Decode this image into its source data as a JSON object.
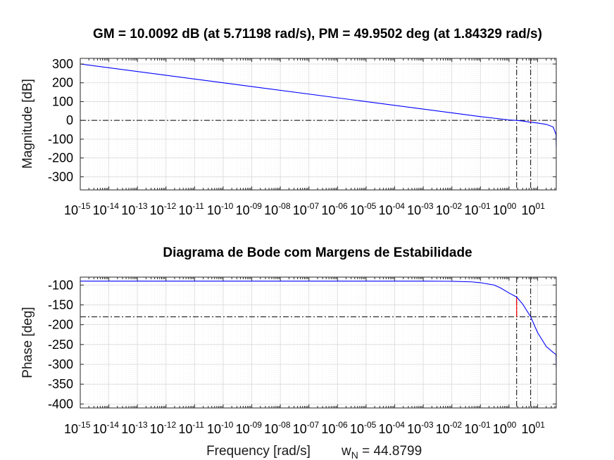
{
  "chart_data": [
    {
      "type": "line",
      "title": "GM = 10.0092 dB (at 5.71198 rad/s),   PM = 49.9502 deg (at 1.84329 rad/s)",
      "ylabel": "Magnitude [dB]",
      "xscale": "log",
      "xlim": [
        1e-15,
        44.8799
      ],
      "ylim": [
        -370,
        330
      ],
      "yticks": [
        300,
        200,
        100,
        0,
        -100,
        -200,
        -300
      ],
      "xtick_exponents": [
        "-15",
        "-14",
        "-13",
        "-12",
        "-11",
        "-10",
        "-09",
        "-08",
        "-07",
        "-06",
        "-05",
        "-04",
        "-03",
        "-02",
        "-01",
        "00",
        "01"
      ],
      "grid": true,
      "series": [
        {
          "color": "#0000ff",
          "x": [
            1e-15,
            1e-10,
            1e-05,
            0.01,
            0.1,
            1.0,
            1.84329,
            3.0,
            5.71198,
            10.0,
            20.0,
            35.0,
            44.0,
            44.8799
          ],
          "y": [
            300,
            200,
            100,
            40,
            20.0,
            2.5,
            0,
            -3.5,
            -10.0,
            -14.0,
            -21.0,
            -35.0,
            -75.0,
            -140.0
          ]
        }
      ],
      "reference_lines": [
        {
          "orientation": "horizontal",
          "y": 0,
          "style": "dash-dot",
          "color": "#000000"
        },
        {
          "orientation": "vertical",
          "x": 1.84329,
          "style": "dash-dot",
          "color": "#000000"
        },
        {
          "orientation": "vertical",
          "x": 5.71198,
          "style": "dash-dot",
          "color": "#000000"
        }
      ],
      "margin_marker": {
        "x": 5.71198,
        "y_from": 0,
        "y_to": -10.0092,
        "color": "#ff0000"
      }
    },
    {
      "type": "line",
      "title": "Diagrama de Bode com Margens de Estabilidade",
      "ylabel": "Phase [deg]",
      "xlabel": "Frequency [rad/s]",
      "xscale": "log",
      "xlim": [
        1e-15,
        44.8799
      ],
      "ylim": [
        -410,
        -80
      ],
      "yticks": [
        -100,
        -150,
        -200,
        -250,
        -300,
        -350,
        -400
      ],
      "xtick_exponents": [
        "-15",
        "-14",
        "-13",
        "-12",
        "-11",
        "-10",
        "-09",
        "-08",
        "-07",
        "-06",
        "-05",
        "-04",
        "-03",
        "-02",
        "-01",
        "00",
        "01"
      ],
      "grid": true,
      "series": [
        {
          "color": "#0000ff",
          "x": [
            1e-15,
            0.001,
            0.01,
            0.05,
            0.1,
            0.3,
            0.5,
            1.0,
            1.84329,
            3.0,
            5.71198,
            10.0,
            20.0,
            35.0,
            44.0,
            44.8799
          ],
          "y": [
            -90,
            -90,
            -90.5,
            -92,
            -94,
            -100,
            -107,
            -120,
            -130.05,
            -148,
            -180,
            -220,
            -255,
            -270,
            -275,
            -310
          ]
        }
      ],
      "reference_lines": [
        {
          "orientation": "horizontal",
          "y": -180,
          "style": "dash-dot",
          "color": "#000000"
        },
        {
          "orientation": "vertical",
          "x": 1.84329,
          "style": "dash-dot",
          "color": "#000000"
        },
        {
          "orientation": "vertical",
          "x": 5.71198,
          "style": "dash-dot",
          "color": "#000000"
        }
      ],
      "margin_marker": {
        "x": 1.84329,
        "y_from": -180,
        "y_to": -130.05,
        "color": "#ff0000"
      }
    }
  ],
  "footer": {
    "xlabel": "Frequency [rad/s]",
    "wn_symbol": "w",
    "wn_subscript": "N",
    "wn_value": " = 44.8799"
  }
}
